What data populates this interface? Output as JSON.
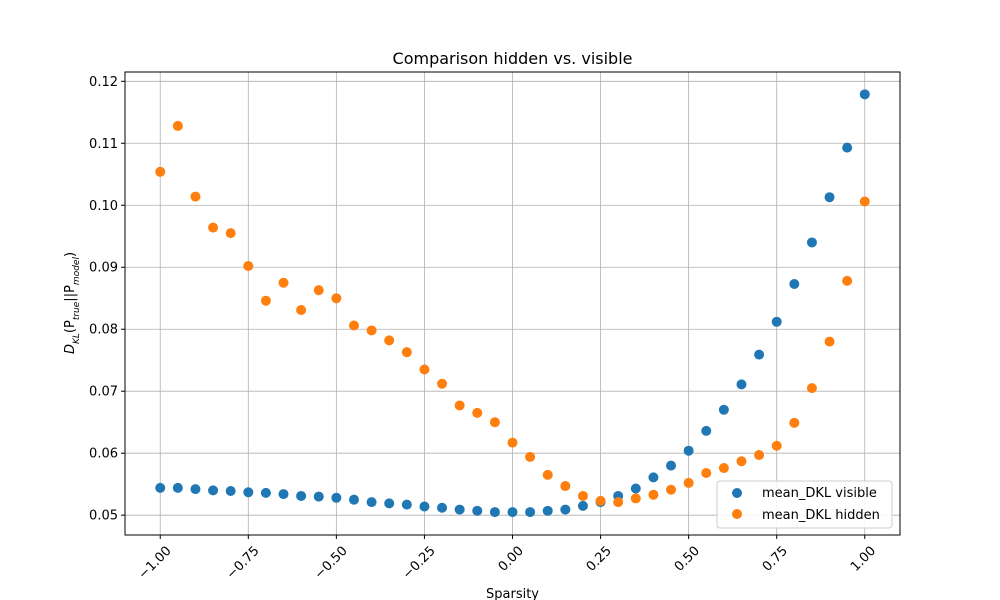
{
  "chart_data": {
    "type": "scatter",
    "title": "Comparison hidden vs. visible",
    "xlabel": "Sparsity",
    "ylabel_base": "D",
    "ylabel_sub": "KL",
    "ylabel_body": "(P",
    "ylabel_sub_true": "true",
    "ylabel_sep": "||P",
    "ylabel_sub_model": "model",
    "ylabel_close": ")",
    "xlim": [
      -1.1,
      1.1
    ],
    "ylim": [
      0.0468,
      0.1215
    ],
    "xticks": [
      -1.0,
      -0.75,
      -0.5,
      -0.25,
      0.0,
      0.25,
      0.5,
      0.75,
      1.0
    ],
    "xtick_labels": [
      "−1.00",
      "−0.75",
      "−0.50",
      "−0.25",
      "0.00",
      "0.25",
      "0.50",
      "0.75",
      "1.00"
    ],
    "yticks": [
      0.05,
      0.06,
      0.07,
      0.08,
      0.09,
      0.1,
      0.11,
      0.12
    ],
    "ytick_labels": [
      "0.05",
      "0.06",
      "0.07",
      "0.08",
      "0.09",
      "0.10",
      "0.11",
      "0.12"
    ],
    "grid": true,
    "legend_position": "lower-right",
    "x": [
      -1.0,
      -0.95,
      -0.9,
      -0.85,
      -0.8,
      -0.75,
      -0.7,
      -0.65,
      -0.6,
      -0.55,
      -0.5,
      -0.45,
      -0.4,
      -0.35,
      -0.3,
      -0.25,
      -0.2,
      -0.15,
      -0.1,
      -0.05,
      0.0,
      0.05,
      0.1,
      0.15,
      0.2,
      0.25,
      0.3,
      0.35,
      0.4,
      0.45,
      0.5,
      0.55,
      0.6,
      0.65,
      0.7,
      0.75,
      0.8,
      0.85,
      0.9,
      0.95,
      1.0
    ],
    "series": [
      {
        "name": "mean_DKL visible",
        "color": "#1f77b4",
        "values": [
          0.0544,
          0.0544,
          0.0542,
          0.054,
          0.0539,
          0.0537,
          0.0536,
          0.0534,
          0.0531,
          0.053,
          0.0528,
          0.0525,
          0.0521,
          0.0519,
          0.0517,
          0.0514,
          0.0512,
          0.0509,
          0.0507,
          0.0505,
          0.0505,
          0.0505,
          0.0507,
          0.0509,
          0.0515,
          0.0521,
          0.0531,
          0.0543,
          0.0561,
          0.058,
          0.0604,
          0.0636,
          0.067,
          0.0711,
          0.0759,
          0.0812,
          0.0873,
          0.094,
          0.1013,
          0.1093,
          0.1179
        ]
      },
      {
        "name": "mean_DKL hidden",
        "color": "#ff7f0e",
        "values": [
          0.1054,
          0.1128,
          0.1014,
          0.0964,
          0.0955,
          0.0902,
          0.0846,
          0.0875,
          0.0831,
          0.0863,
          0.085,
          0.0806,
          0.0798,
          0.0782,
          0.0763,
          0.0735,
          0.0712,
          0.0677,
          0.0665,
          0.065,
          0.0617,
          0.0594,
          0.0565,
          0.0547,
          0.0531,
          0.0523,
          0.0521,
          0.0527,
          0.0533,
          0.0541,
          0.0552,
          0.0568,
          0.0576,
          0.0587,
          0.0597,
          0.0612,
          0.0649,
          0.0705,
          0.078,
          0.0878,
          0.1006
        ]
      }
    ]
  }
}
